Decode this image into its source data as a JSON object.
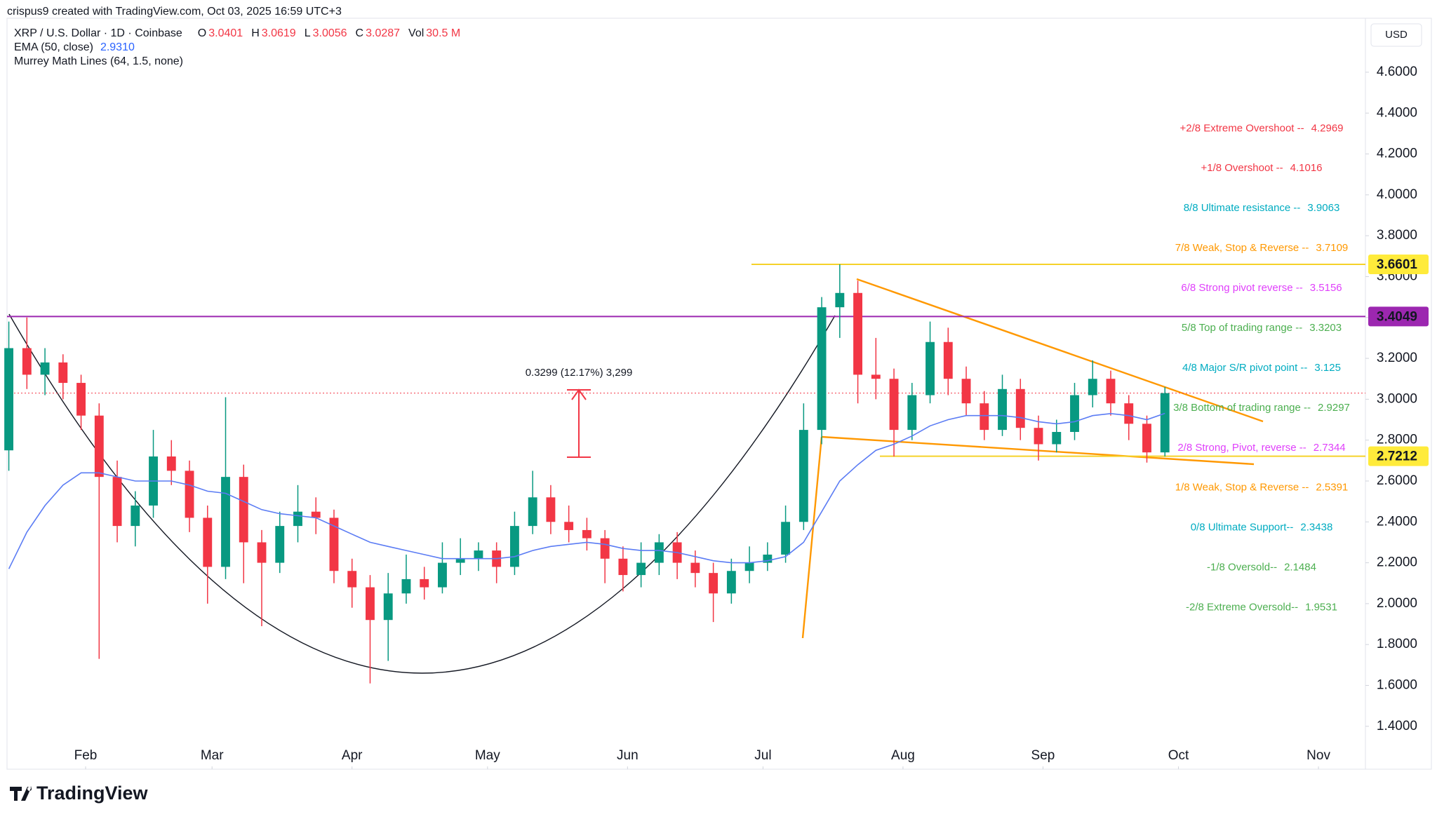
{
  "header": {
    "credit": "crispus9 created with TradingView.com, Oct 03, 2025 16:59 UTC+3",
    "currency": "USD",
    "logo": "TradingView"
  },
  "chart_data": {
    "type": "candlestick",
    "title": "XRP / U.S. Dollar · 1D · Coinbase",
    "ohlc_legend": [
      {
        "key": "O",
        "value": "3.0401"
      },
      {
        "key": "H",
        "value": "3.0619"
      },
      {
        "key": "L",
        "value": "3.0056"
      },
      {
        "key": "C",
        "value": "3.0287"
      },
      {
        "key": "Vol",
        "value": "30.5 M"
      }
    ],
    "up_color": "#089981",
    "down_color": "#f23645",
    "candles": {
      "open": [
        2.75,
        3.25,
        3.12,
        3.18,
        3.08,
        2.92,
        2.62,
        2.38,
        2.48,
        2.72,
        2.65,
        2.42,
        2.18,
        2.62,
        2.3,
        2.2,
        2.38,
        2.45,
        2.42,
        2.16,
        2.08,
        1.92,
        2.05,
        2.12,
        2.08,
        2.2,
        2.22,
        2.26,
        2.18,
        2.38,
        2.52,
        2.4,
        2.36,
        2.32,
        2.22,
        2.14,
        2.2,
        2.3,
        2.2,
        2.15,
        2.05,
        2.16,
        2.2,
        2.24,
        2.4,
        2.85,
        3.45,
        3.52,
        3.12,
        3.1,
        2.85,
        3.02,
        3.28,
        3.1,
        2.98,
        2.85,
        3.05,
        2.86,
        2.78,
        2.84,
        3.02,
        3.1,
        2.98,
        2.88,
        2.74
      ],
      "high": [
        3.38,
        3.4,
        3.25,
        3.22,
        3.12,
        2.98,
        2.7,
        2.55,
        2.85,
        2.8,
        2.7,
        2.48,
        3.01,
        2.68,
        2.36,
        2.45,
        2.58,
        2.52,
        2.46,
        2.22,
        2.14,
        2.15,
        2.24,
        2.18,
        2.3,
        2.32,
        2.3,
        2.3,
        2.45,
        2.65,
        2.58,
        2.48,
        2.42,
        2.36,
        2.28,
        2.3,
        2.34,
        2.35,
        2.26,
        2.2,
        2.22,
        2.28,
        2.3,
        2.48,
        2.98,
        3.5,
        3.66,
        3.58,
        3.3,
        3.15,
        3.08,
        3.38,
        3.35,
        3.16,
        3.04,
        3.12,
        3.1,
        2.92,
        2.9,
        3.08,
        3.19,
        3.14,
        3.02,
        2.92,
        3.06
      ],
      "low": [
        2.65,
        3.05,
        3.02,
        3.0,
        2.85,
        1.73,
        2.3,
        2.28,
        2.42,
        2.58,
        2.35,
        2.0,
        2.12,
        2.1,
        1.89,
        2.15,
        2.3,
        2.34,
        2.1,
        1.98,
        1.61,
        1.72,
        2.0,
        2.02,
        2.05,
        2.14,
        2.16,
        2.1,
        2.14,
        2.34,
        2.34,
        2.3,
        2.26,
        2.1,
        2.06,
        2.08,
        2.14,
        2.12,
        2.08,
        1.91,
        2.0,
        2.1,
        2.16,
        2.2,
        2.36,
        2.78,
        3.3,
        2.98,
        3.0,
        2.72,
        2.8,
        2.98,
        3.02,
        2.92,
        2.8,
        2.82,
        2.8,
        2.7,
        2.74,
        2.8,
        2.96,
        2.92,
        2.8,
        2.69,
        2.72
      ],
      "close": [
        3.25,
        3.12,
        3.18,
        3.08,
        2.92,
        2.62,
        2.38,
        2.48,
        2.72,
        2.65,
        2.42,
        2.18,
        2.62,
        2.3,
        2.2,
        2.38,
        2.45,
        2.42,
        2.16,
        2.08,
        1.92,
        2.05,
        2.12,
        2.08,
        2.2,
        2.22,
        2.26,
        2.18,
        2.38,
        2.52,
        2.4,
        2.36,
        2.32,
        2.22,
        2.14,
        2.2,
        2.3,
        2.2,
        2.15,
        2.05,
        2.16,
        2.2,
        2.24,
        2.4,
        2.85,
        3.45,
        3.52,
        3.12,
        3.1,
        2.85,
        3.02,
        3.28,
        3.1,
        2.98,
        2.85,
        3.05,
        2.86,
        2.78,
        2.84,
        3.02,
        3.1,
        2.98,
        2.88,
        2.74,
        3.03
      ]
    },
    "ema": {
      "label": "EMA (50, close)",
      "value_label": "2.9310",
      "color": "#5b7cf4",
      "values": [
        2.17,
        2.35,
        2.48,
        2.58,
        2.64,
        2.64,
        2.62,
        2.6,
        2.6,
        2.6,
        2.58,
        2.55,
        2.54,
        2.5,
        2.46,
        2.44,
        2.43,
        2.42,
        2.38,
        2.34,
        2.3,
        2.28,
        2.26,
        2.24,
        2.22,
        2.22,
        2.22,
        2.22,
        2.23,
        2.26,
        2.28,
        2.29,
        2.3,
        2.29,
        2.27,
        2.26,
        2.26,
        2.25,
        2.23,
        2.21,
        2.2,
        2.2,
        2.21,
        2.23,
        2.3,
        2.45,
        2.6,
        2.68,
        2.75,
        2.78,
        2.82,
        2.87,
        2.9,
        2.92,
        2.92,
        2.92,
        2.91,
        2.89,
        2.88,
        2.89,
        2.92,
        2.93,
        2.92,
        2.9,
        2.931
      ]
    },
    "murrey_title": "Murrey Math Lines (64, 1.5, none)",
    "murrey_levels": [
      {
        "label": "+2/8 Extreme Overshoot --",
        "value": 4.2969,
        "color": "#f23645"
      },
      {
        "label": "+1/8 Overshoot --",
        "value": 4.1016,
        "color": "#f23645"
      },
      {
        "label": "8/8 Ultimate resistance --",
        "value": 3.9063,
        "color": "#00acc1"
      },
      {
        "label": "7/8 Weak, Stop & Reverse --",
        "value": 3.7109,
        "color": "#ff9800"
      },
      {
        "label": "6/8 Strong pivot reverse --",
        "value": 3.5156,
        "color": "#e040fb"
      },
      {
        "label": "5/8 Top of trading range --",
        "value": 3.3203,
        "color": "#4caf50"
      },
      {
        "label": "4/8 Major S/R pivot point --",
        "value": 3.125,
        "color": "#00acc1"
      },
      {
        "label": "3/8 Bottom of trading range --",
        "value": 2.9297,
        "color": "#4caf50"
      },
      {
        "label": "2/8 Strong, Pivot, reverse --",
        "value": 2.7344,
        "color": "#e040fb"
      },
      {
        "label": "1/8 Weak, Stop & Reverse --",
        "value": 2.5391,
        "color": "#ff9800"
      },
      {
        "label": "0/8 Ultimate Support--",
        "value": 2.3438,
        "color": "#00acc1"
      },
      {
        "label": "-1/8 Oversold--",
        "value": 2.1484,
        "color": "#4caf50"
      },
      {
        "label": "-2/8 Extreme Oversold--",
        "value": 1.9531,
        "color": "#4caf50"
      }
    ],
    "price_lines": [
      {
        "value": 3.6601,
        "color": "#ffeb3b",
        "text_color": "#131722"
      },
      {
        "value": 3.4049,
        "color": "#9c27b0",
        "text_color": "#ffffff"
      },
      {
        "value": 2.7212,
        "color": "#ffeb3b",
        "text_color": "#131722"
      }
    ],
    "measure_label": "0.3299 (12.17%) 3,299",
    "xlim": [
      -0.1,
      75.1
    ],
    "xticks": [
      {
        "value": 4.25,
        "label": "Feb"
      },
      {
        "value": 11.25,
        "label": "Mar"
      },
      {
        "value": 19,
        "label": "Apr"
      },
      {
        "value": 26.5,
        "label": "May"
      },
      {
        "value": 34.25,
        "label": "Jun"
      },
      {
        "value": 41.75,
        "label": "Jul"
      },
      {
        "value": 49.5,
        "label": "Aug"
      },
      {
        "value": 57.25,
        "label": "Sep"
      },
      {
        "value": 64.75,
        "label": "Oct"
      },
      {
        "value": 72.5,
        "label": "Nov"
      }
    ],
    "ylim": [
      1.19,
      4.864
    ],
    "yticks": [
      {
        "value": 1.4,
        "label": "1.4000"
      },
      {
        "value": 1.6,
        "label": "1.6000"
      },
      {
        "value": 1.8,
        "label": "1.8000"
      },
      {
        "value": 2.0,
        "label": "2.0000"
      },
      {
        "value": 2.2,
        "label": "2.2000"
      },
      {
        "value": 2.4,
        "label": "2.4000"
      },
      {
        "value": 2.6,
        "label": "2.6000"
      },
      {
        "value": 2.8,
        "label": "2.8000"
      },
      {
        "value": 3.0,
        "label": "3.0000"
      },
      {
        "value": 3.2,
        "label": "3.2000"
      },
      {
        "value": 3.4,
        "label": "3.4000"
      },
      {
        "value": 3.6,
        "label": "3.6000"
      },
      {
        "value": 3.8,
        "label": "3.8000"
      },
      {
        "value": 4.0,
        "label": "4.0000"
      },
      {
        "value": 4.2,
        "label": "4.2000"
      },
      {
        "value": 4.4,
        "label": "4.4000"
      },
      {
        "value": 4.6,
        "label": "4.6000"
      }
    ],
    "grid": false
  }
}
